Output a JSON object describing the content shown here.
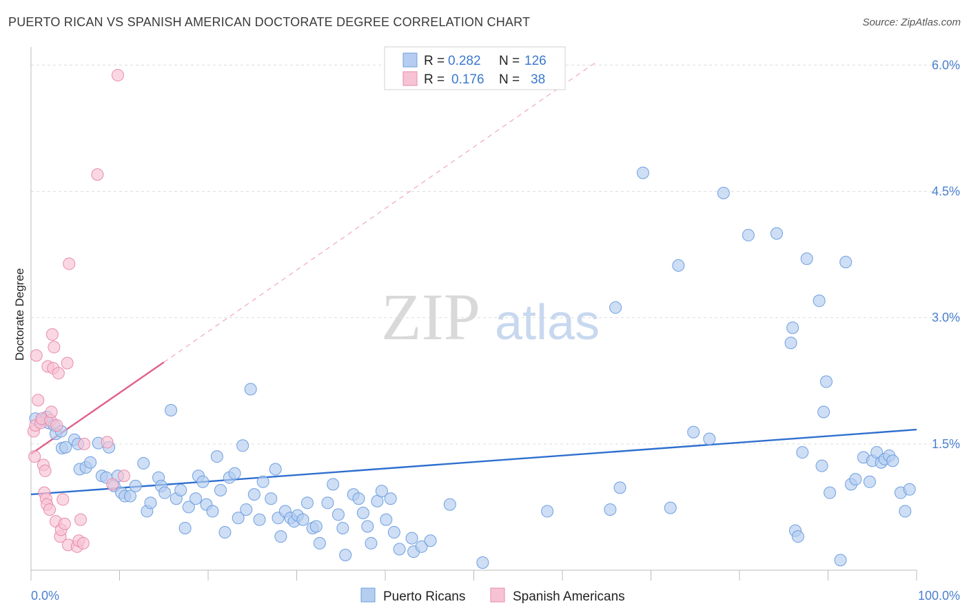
{
  "title": "PUERTO RICAN VS SPANISH AMERICAN DOCTORATE DEGREE CORRELATION CHART",
  "source": "Source: ZipAtlas.com",
  "watermark": {
    "part1": "ZIP",
    "part2": "atlas"
  },
  "legend": {
    "r_label": "R =",
    "n_label": "N =",
    "rows": [
      {
        "r": "0.282",
        "n": "126"
      },
      {
        "r": "0.176",
        "n": "38"
      }
    ]
  },
  "chart_data": {
    "type": "scatter",
    "title": "PUERTO RICAN VS SPANISH AMERICAN DOCTORATE DEGREE CORRELATION CHART",
    "xlabel": "",
    "ylabel": "Doctorate Degree",
    "xlim": [
      0,
      100
    ],
    "ylim": [
      0,
      6.2
    ],
    "x_tick_labels": [
      "0.0%",
      "100.0%"
    ],
    "y_ticks": [
      1.5,
      3.0,
      4.5,
      6.0
    ],
    "y_tick_labels": [
      "1.5%",
      "3.0%",
      "4.5%",
      "6.0%"
    ],
    "grid": true,
    "series": [
      {
        "name": "Puerto Ricans",
        "color": "#6d9fe0",
        "fill": "#b4cdf0",
        "trend": {
          "x": [
            0,
            100
          ],
          "y": [
            0.9,
            1.67
          ],
          "color": "#2f6fcf",
          "dashed": false
        },
        "points": [
          [
            0.5,
            1.8
          ],
          [
            1.2,
            1.78
          ],
          [
            1.8,
            1.82
          ],
          [
            2.0,
            1.75
          ],
          [
            2.6,
            1.72
          ],
          [
            2.8,
            1.62
          ],
          [
            3.4,
            1.65
          ],
          [
            3.5,
            1.45
          ],
          [
            3.9,
            1.46
          ],
          [
            4.9,
            1.55
          ],
          [
            5.3,
            1.5
          ],
          [
            5.5,
            1.2
          ],
          [
            6.2,
            1.22
          ],
          [
            6.7,
            1.28
          ],
          [
            7.6,
            1.51
          ],
          [
            8.0,
            1.12
          ],
          [
            8.5,
            1.1
          ],
          [
            8.8,
            1.46
          ],
          [
            9.4,
            1.0
          ],
          [
            9.8,
            1.12
          ],
          [
            10.2,
            0.92
          ],
          [
            10.6,
            0.88
          ],
          [
            11.2,
            0.88
          ],
          [
            11.8,
            1.0
          ],
          [
            12.7,
            1.27
          ],
          [
            13.1,
            0.7
          ],
          [
            13.5,
            0.8
          ],
          [
            14.4,
            1.1
          ],
          [
            14.7,
            1.0
          ],
          [
            15.1,
            0.92
          ],
          [
            15.8,
            1.9
          ],
          [
            16.4,
            0.85
          ],
          [
            16.9,
            0.95
          ],
          [
            17.4,
            0.5
          ],
          [
            17.8,
            0.75
          ],
          [
            18.6,
            0.85
          ],
          [
            18.9,
            1.12
          ],
          [
            19.4,
            1.05
          ],
          [
            19.8,
            0.78
          ],
          [
            20.5,
            0.7
          ],
          [
            21.0,
            1.35
          ],
          [
            21.4,
            0.95
          ],
          [
            21.9,
            0.45
          ],
          [
            22.4,
            1.1
          ],
          [
            23.0,
            1.15
          ],
          [
            23.4,
            0.62
          ],
          [
            23.9,
            1.48
          ],
          [
            24.3,
            0.72
          ],
          [
            24.8,
            2.15
          ],
          [
            25.2,
            0.9
          ],
          [
            25.8,
            0.6
          ],
          [
            26.2,
            1.05
          ],
          [
            27.1,
            0.85
          ],
          [
            27.6,
            1.2
          ],
          [
            27.9,
            0.62
          ],
          [
            28.2,
            0.4
          ],
          [
            28.7,
            0.7
          ],
          [
            29.3,
            0.62
          ],
          [
            29.7,
            0.58
          ],
          [
            30.1,
            0.65
          ],
          [
            30.7,
            0.6
          ],
          [
            31.2,
            0.8
          ],
          [
            31.8,
            0.5
          ],
          [
            32.2,
            0.52
          ],
          [
            32.6,
            0.32
          ],
          [
            33.5,
            0.8
          ],
          [
            34.1,
            1.02
          ],
          [
            34.7,
            0.66
          ],
          [
            35.2,
            0.5
          ],
          [
            35.5,
            0.18
          ],
          [
            36.4,
            0.9
          ],
          [
            37.0,
            0.85
          ],
          [
            37.5,
            0.68
          ],
          [
            38.0,
            0.52
          ],
          [
            38.4,
            0.32
          ],
          [
            39.1,
            0.82
          ],
          [
            39.6,
            0.94
          ],
          [
            40.1,
            0.6
          ],
          [
            40.6,
            0.85
          ],
          [
            41.0,
            0.45
          ],
          [
            41.6,
            0.25
          ],
          [
            43.0,
            0.38
          ],
          [
            43.2,
            0.22
          ],
          [
            44.1,
            0.28
          ],
          [
            45.1,
            0.35
          ],
          [
            47.3,
            0.78
          ],
          [
            51.0,
            0.09
          ],
          [
            58.3,
            0.7
          ],
          [
            65.4,
            0.72
          ],
          [
            66.0,
            3.12
          ],
          [
            66.5,
            0.98
          ],
          [
            69.1,
            4.72
          ],
          [
            72.2,
            0.74
          ],
          [
            73.1,
            3.62
          ],
          [
            74.8,
            1.64
          ],
          [
            76.6,
            1.56
          ],
          [
            78.2,
            4.48
          ],
          [
            81.0,
            3.98
          ],
          [
            84.2,
            4.0
          ],
          [
            85.8,
            2.7
          ],
          [
            86.0,
            2.88
          ],
          [
            86.3,
            0.47
          ],
          [
            86.6,
            0.4
          ],
          [
            87.1,
            1.4
          ],
          [
            87.6,
            3.7
          ],
          [
            89.0,
            3.2
          ],
          [
            89.3,
            1.24
          ],
          [
            89.5,
            1.88
          ],
          [
            89.8,
            2.24
          ],
          [
            90.2,
            0.92
          ],
          [
            91.4,
            0.12
          ],
          [
            92.0,
            3.66
          ],
          [
            92.6,
            1.02
          ],
          [
            93.1,
            1.08
          ],
          [
            94.0,
            1.34
          ],
          [
            94.7,
            1.05
          ],
          [
            95.0,
            1.3
          ],
          [
            95.5,
            1.4
          ],
          [
            96.0,
            1.28
          ],
          [
            96.4,
            1.32
          ],
          [
            96.9,
            1.36
          ],
          [
            97.3,
            1.3
          ],
          [
            98.2,
            0.92
          ],
          [
            98.7,
            0.7
          ],
          [
            99.2,
            0.96
          ]
        ]
      },
      {
        "name": "Spanish Americans",
        "color": "#e98aa9",
        "fill": "#f7c3d4",
        "trend": {
          "x": [
            0,
            15
          ],
          "y": [
            1.38,
            2.47
          ],
          "color": "#e0608a",
          "dashed": false,
          "ext_x": [
            15,
            64
          ],
          "ext_y": [
            2.47,
            6.05
          ]
        },
        "points": [
          [
            0.3,
            1.65
          ],
          [
            0.4,
            1.35
          ],
          [
            0.5,
            1.72
          ],
          [
            0.6,
            2.55
          ],
          [
            0.8,
            2.02
          ],
          [
            1.1,
            1.75
          ],
          [
            1.2,
            1.8
          ],
          [
            1.4,
            1.25
          ],
          [
            1.5,
            0.92
          ],
          [
            1.6,
            1.18
          ],
          [
            1.7,
            0.85
          ],
          [
            1.8,
            0.78
          ],
          [
            1.9,
            2.42
          ],
          [
            2.1,
            0.72
          ],
          [
            2.2,
            1.78
          ],
          [
            2.3,
            1.88
          ],
          [
            2.4,
            2.8
          ],
          [
            2.5,
            2.4
          ],
          [
            2.6,
            2.65
          ],
          [
            2.8,
            0.58
          ],
          [
            2.9,
            1.72
          ],
          [
            3.1,
            2.34
          ],
          [
            3.3,
            0.4
          ],
          [
            3.4,
            0.48
          ],
          [
            3.6,
            0.84
          ],
          [
            3.8,
            0.55
          ],
          [
            4.1,
            2.46
          ],
          [
            4.2,
            0.3
          ],
          [
            4.3,
            3.64
          ],
          [
            5.2,
            0.28
          ],
          [
            5.4,
            0.35
          ],
          [
            5.6,
            0.6
          ],
          [
            5.9,
            0.32
          ],
          [
            6.0,
            1.5
          ],
          [
            7.5,
            4.7
          ],
          [
            8.6,
            1.52
          ],
          [
            9.2,
            1.02
          ],
          [
            9.8,
            5.88
          ],
          [
            10.5,
            1.12
          ]
        ]
      }
    ]
  }
}
